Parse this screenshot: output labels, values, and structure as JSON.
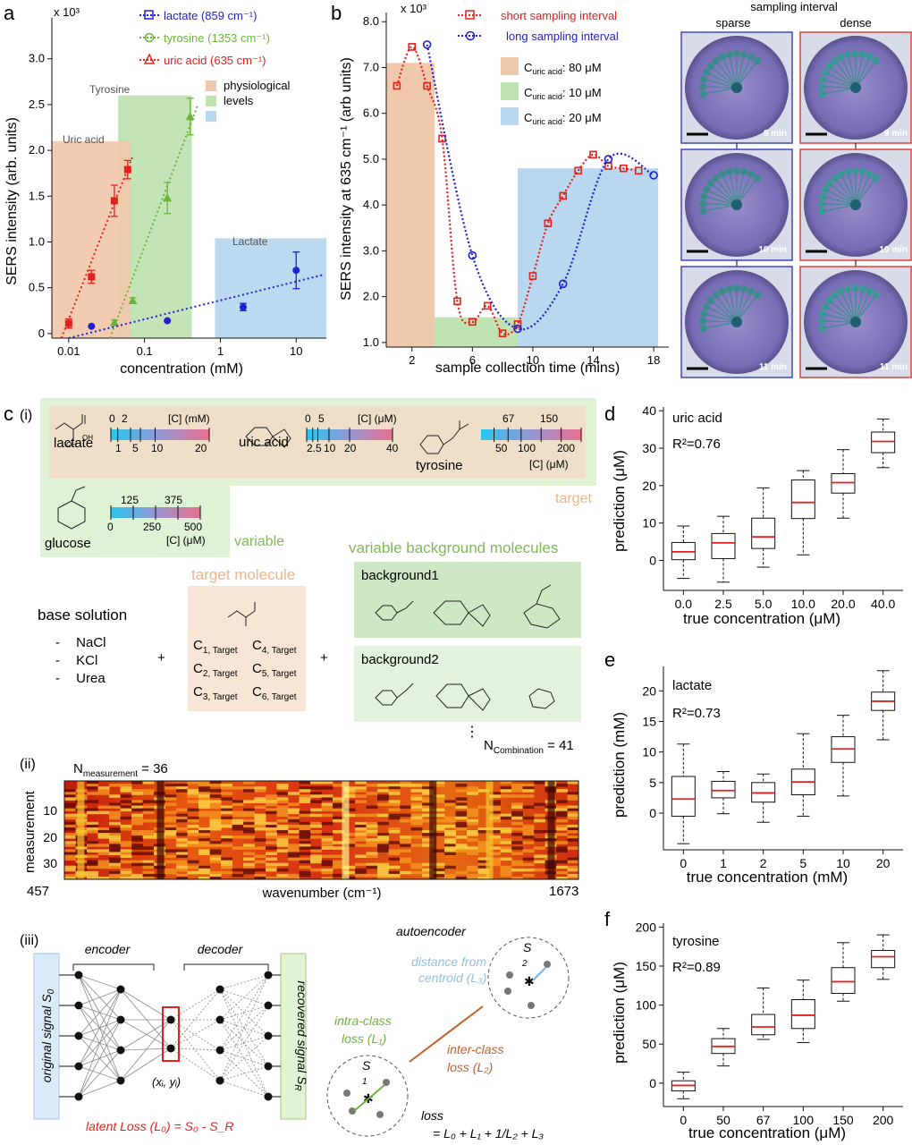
{
  "panel_a": {
    "letter": "a",
    "scale": "x 10³",
    "ylabel": "SERS intensity (arb. units)",
    "xlabel": "concentration (mM)",
    "yticks": [
      "0",
      "0.5",
      "1.0",
      "1.5",
      "2.0",
      "2.5",
      "3.0"
    ],
    "xticks": [
      "0.01",
      "0.1",
      "1",
      "10"
    ],
    "legend": [
      "lactate (859 cm⁻¹)",
      "tyrosine (1353 cm⁻¹)",
      "uric acid (635 cm⁻¹)"
    ],
    "region_legend": [
      "physiological",
      "levels"
    ],
    "regions": [
      "Tyrosine",
      "Uric acid",
      "Lactate"
    ],
    "colors": {
      "lactate": "#1f1fd6",
      "tyrosine": "#6cb43c",
      "uric": "#e3201c"
    }
  },
  "panel_b": {
    "letter": "b",
    "scale": "x 10³",
    "ylabel": "SERS intensity at 635 cm⁻¹ (arb units)",
    "xlabel": "sample collection time (mins)",
    "yticks": [
      "1.0",
      "2.0",
      "3.0",
      "4.0",
      "5.0",
      "6.0",
      "7.0",
      "8.0"
    ],
    "xticks": [
      "2",
      "6",
      "10",
      "14",
      "18"
    ],
    "legend": [
      "short sampling interval",
      "long sampling interval"
    ],
    "conc_legend": [
      "C",
      "uric acid",
      ": 80 μM",
      ": 10 μM",
      ": 20 μM"
    ],
    "photo_header": "sampling interval",
    "photo_cols": [
      "sparse",
      "dense"
    ],
    "photo_times": [
      "9 min",
      "10 min",
      "11 min"
    ]
  },
  "panel_c": {
    "letter": "c",
    "sub": [
      "(i)",
      "(ii)",
      "(iii)"
    ],
    "molecules": [
      "lactate",
      "uric acid",
      "tyrosine",
      "glucose"
    ],
    "lactate_scale": {
      "unit": "[C] (mM)",
      "top": [
        "0",
        "2"
      ],
      "bottom": [
        "1",
        "5",
        "10",
        "20"
      ]
    },
    "uric_scale": {
      "unit": "[C] (μM)",
      "top": [
        "0",
        "5"
      ],
      "bottom": [
        "2.5",
        "10",
        "20",
        "40"
      ]
    },
    "tyrosine_scale": {
      "unit": "[C] (μM)",
      "top": [
        "67",
        "150"
      ],
      "bottom": [
        "50",
        "100",
        "200"
      ]
    },
    "glucose_scale": {
      "unit": "[C] (μM)",
      "top": [
        "125",
        "375"
      ],
      "bottom": [
        "0",
        "250",
        "500"
      ]
    },
    "tags": {
      "target": "target",
      "variable": "variable"
    },
    "target_molecule": "target molecule",
    "variable_background": "variable background molecules",
    "base_solution": "base solution",
    "base_items": [
      "NaCl",
      "KCl",
      "Urea"
    ],
    "conc_subs": [
      "C",
      "1, Target",
      "2, Target",
      "3, Target",
      "4, Target",
      "5, Target",
      "6, Target"
    ],
    "backgrounds": [
      "background1",
      "background2"
    ],
    "n_combination": [
      "N",
      "Combination",
      " = 41"
    ],
    "n_measurement": [
      "N",
      "measurement",
      " = 36"
    ],
    "heatmap_ylabel": "measurement",
    "heatmap_yticks": [
      "10",
      "20",
      "30"
    ],
    "heatmap_xlabel": "wavenumber (cm⁻¹)",
    "heatmap_x_range": [
      "457",
      "1673"
    ],
    "encoder": "encoder",
    "decoder": "decoder",
    "original_signal": [
      "original signal ",
      "S",
      "0"
    ],
    "recovered_signal": [
      "recovered signal ",
      "S",
      "R"
    ],
    "latent_xy": "(xᵢ, yᵢ)",
    "latent_loss": "latent Loss (L₀) = S₀ - S_R",
    "autoencoder": "autoencoder",
    "distance": [
      "distance from",
      "centroid (L₃)"
    ],
    "intra": [
      "intra-class",
      "loss (L₁)"
    ],
    "inter": [
      "inter-class",
      "loss (L₂)"
    ],
    "cluster_labels": [
      "S",
      "1",
      "2"
    ],
    "loss_label": "loss",
    "loss_eq": "= L₀ + L₁ + 1/L₂ + L₃"
  },
  "panel_d": {
    "letter": "d",
    "title": "uric acid",
    "r2": "R²=0.76",
    "color": "#e3201c",
    "ylabel": "prediction (μM)",
    "xlabel": "true concentration (μM)",
    "yticks": [
      "0",
      "10",
      "20",
      "30",
      "40"
    ],
    "xticks": [
      "0.0",
      "2.5",
      "5.0",
      "10.0",
      "20.0",
      "40.0"
    ]
  },
  "panel_e": {
    "letter": "e",
    "title": "lactate",
    "r2": "R²=0.73",
    "color": "#1f1fd6",
    "ylabel": "prediction (mM)",
    "xlabel": "true concentration (mM)",
    "yticks": [
      "0",
      "5",
      "10",
      "15",
      "20"
    ],
    "xticks": [
      "0",
      "1",
      "2",
      "5",
      "10",
      "20"
    ]
  },
  "panel_f": {
    "letter": "f",
    "title": "tyrosine",
    "r2": "R²=0.89",
    "color": "#6cb43c",
    "ylabel": "prediction (μM)",
    "xlabel": "true concentration (μM)",
    "yticks": [
      "0",
      "50",
      "100",
      "150",
      "200"
    ],
    "xticks": [
      "0",
      "50",
      "67",
      "100",
      "150",
      "200"
    ]
  },
  "chart_data": [
    {
      "type": "scatter",
      "panel": "a",
      "xscale": "log",
      "xlim": [
        0.006,
        25
      ],
      "ylim": [
        -0.05,
        3.3
      ],
      "series": [
        {
          "name": "uric acid (635 cm⁻¹)",
          "x": [
            0.01,
            0.02,
            0.04,
            0.06
          ],
          "y": [
            0.11,
            0.62,
            1.45,
            1.79
          ],
          "err": [
            0.05,
            0.07,
            0.17,
            0.1
          ]
        },
        {
          "name": "tyrosine (1353 cm⁻¹)",
          "x": [
            0.04,
            0.07,
            0.2,
            0.4
          ],
          "y": [
            0.12,
            0.36,
            1.48,
            2.37
          ],
          "err": [
            0.03,
            0.03,
            0.17,
            0.2
          ]
        },
        {
          "name": "lactate (859 cm⁻¹)",
          "x": [
            0.02,
            0.2,
            2,
            10
          ],
          "y": [
            0.08,
            0.14,
            0.29,
            0.69
          ],
          "err": [
            0,
            0,
            0.04,
            0.2
          ]
        }
      ]
    },
    {
      "type": "scatter",
      "panel": "b",
      "xlim": [
        0.3,
        19
      ],
      "ylim": [
        0.9,
        8.2
      ],
      "series": [
        {
          "name": "short sampling interval",
          "x": [
            1,
            2,
            3,
            4,
            5,
            6,
            7,
            8,
            9,
            10,
            11,
            12,
            13,
            14,
            15,
            16,
            17
          ],
          "y": [
            6.6,
            7.45,
            6.6,
            5.45,
            1.9,
            1.45,
            1.8,
            1.2,
            1.4,
            2.45,
            3.6,
            4.2,
            4.75,
            5.1,
            4.85,
            4.8,
            4.75
          ]
        },
        {
          "name": "long sampling interval",
          "x": [
            3,
            6,
            9,
            12,
            15,
            18
          ],
          "y": [
            7.5,
            2.9,
            1.3,
            2.28,
            5.0,
            4.65
          ]
        }
      ]
    },
    {
      "type": "box",
      "panel": "d",
      "categories": [
        "0.0",
        "2.5",
        "5.0",
        "10.0",
        "20.0",
        "40.0"
      ],
      "ylim": [
        -8,
        41
      ],
      "boxes": [
        {
          "min": -4.8,
          "q1": 0.2,
          "median": 2.3,
          "q3": 4.8,
          "max": 9.2
        },
        {
          "min": -5.8,
          "q1": 0.5,
          "median": 4.7,
          "q3": 7.2,
          "max": 11.8
        },
        {
          "min": -1.8,
          "q1": 3.2,
          "median": 6.3,
          "q3": 11.3,
          "max": 19.4
        },
        {
          "min": 1.5,
          "q1": 11.2,
          "median": 15.5,
          "q3": 21.5,
          "max": 24.0
        },
        {
          "min": 11.3,
          "q1": 18.0,
          "median": 20.8,
          "q3": 23.2,
          "max": 29.6
        },
        {
          "min": 24.8,
          "q1": 28.8,
          "median": 31.8,
          "q3": 34.3,
          "max": 37.8
        }
      ]
    },
    {
      "type": "box",
      "panel": "e",
      "categories": [
        "0",
        "1",
        "2",
        "5",
        "10",
        "20"
      ],
      "ylim": [
        -6,
        24
      ],
      "boxes": [
        {
          "min": -5.0,
          "q1": -0.5,
          "median": 2.3,
          "q3": 6.0,
          "max": 11.3
        },
        {
          "min": -0.1,
          "q1": 2.5,
          "median": 3.7,
          "q3": 5.2,
          "max": 6.8
        },
        {
          "min": -1.5,
          "q1": 1.8,
          "median": 3.3,
          "q3": 5.0,
          "max": 6.4
        },
        {
          "min": -0.5,
          "q1": 3.0,
          "median": 5.1,
          "q3": 7.2,
          "max": 13.0
        },
        {
          "min": 2.8,
          "q1": 8.3,
          "median": 10.5,
          "q3": 12.5,
          "max": 16.0
        },
        {
          "min": 12.0,
          "q1": 16.8,
          "median": 18.3,
          "q3": 19.8,
          "max": 23.3
        }
      ]
    },
    {
      "type": "box",
      "panel": "f",
      "categories": [
        "0",
        "50",
        "67",
        "100",
        "150",
        "200"
      ],
      "ylim": [
        -30,
        205
      ],
      "boxes": [
        {
          "min": -20,
          "q1": -10,
          "median": -3,
          "q3": 3,
          "max": 14
        },
        {
          "min": 22,
          "q1": 38,
          "median": 47,
          "q3": 57,
          "max": 70
        },
        {
          "min": 56,
          "q1": 62,
          "median": 72,
          "q3": 88,
          "max": 122
        },
        {
          "min": 52,
          "q1": 70,
          "median": 87,
          "q3": 107,
          "max": 132
        },
        {
          "min": 105,
          "q1": 115,
          "median": 130,
          "q3": 148,
          "max": 180
        },
        {
          "min": 133,
          "q1": 148,
          "median": 162,
          "q3": 170,
          "max": 190
        }
      ]
    }
  ]
}
